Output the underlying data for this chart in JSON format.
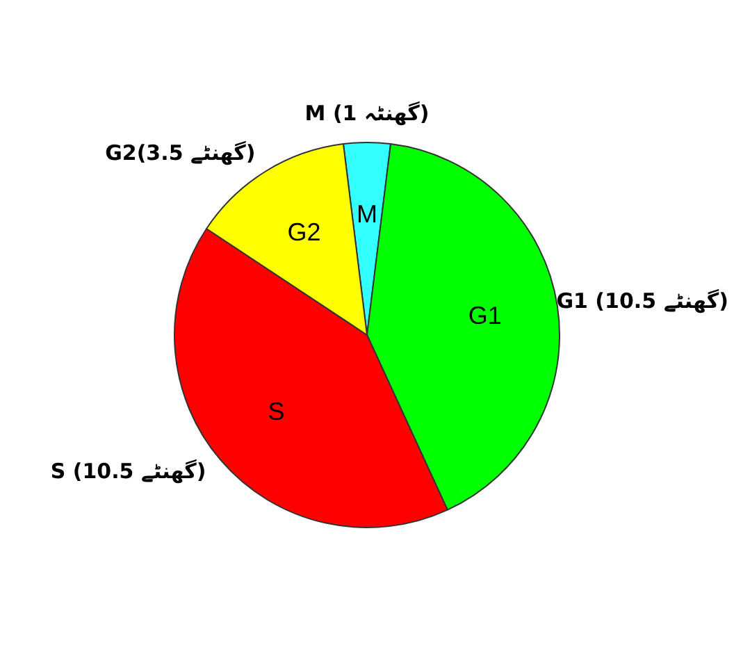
{
  "chart_data": {
    "type": "pie",
    "categories": [
      "M",
      "G1",
      "S",
      "G2"
    ],
    "values": [
      1,
      10.5,
      10.5,
      3.5
    ],
    "colors": [
      "#33ffff",
      "#00ff00",
      "#ff0000",
      "#ffff00"
    ],
    "value_labels": [
      "M (1 گھنٹہ)",
      "G1 (10.5 گھنٹے)",
      "S (10.5 گھنٹے)",
      "G2(3.5 گھنٹے)"
    ],
    "legend": false
  }
}
